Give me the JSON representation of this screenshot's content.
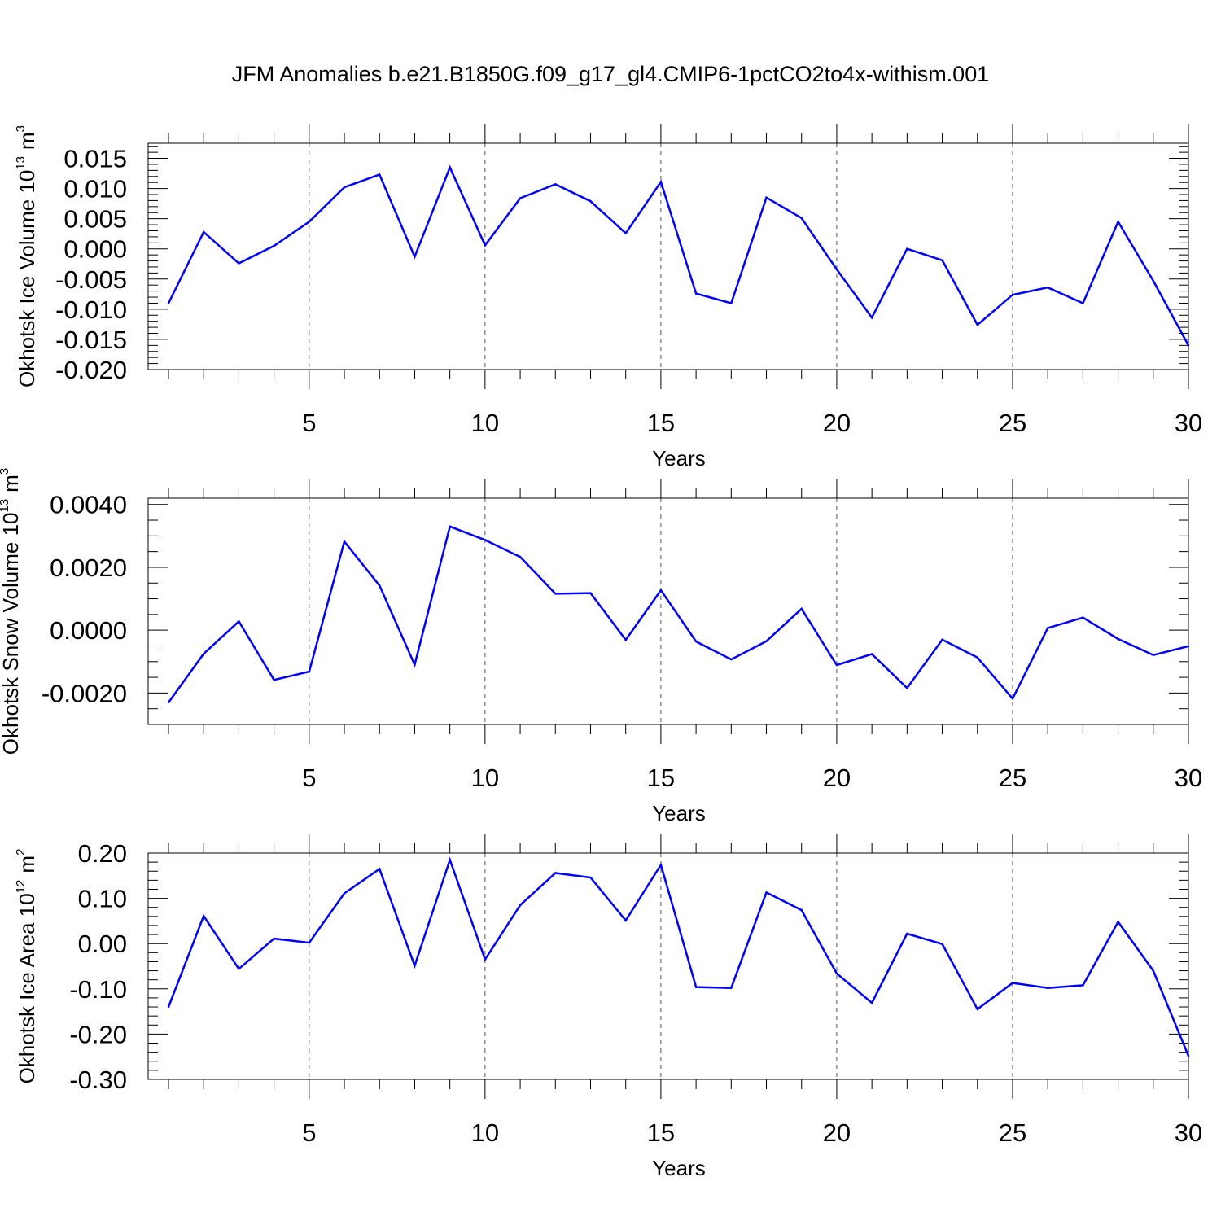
{
  "title": "JFM Anomalies b.e21.B1850G.f09_g17_gl4.CMIP6-1pctCO2to4x-withism.001",
  "colors": {
    "line": "#0000ff",
    "axis": "#000000",
    "grid": "#555555"
  },
  "chart_data": [
    {
      "type": "line",
      "ylabel": {
        "text": "Okhotsk Ice Volume 10",
        "exponent": "13",
        "unit": "m",
        "unit_exponent": "3"
      },
      "xlabel": "Years",
      "xlim": [
        1,
        30
      ],
      "ylim": [
        -0.02,
        0.0175
      ],
      "xticks": [
        5,
        10,
        15,
        20,
        25,
        30
      ],
      "xtick_labels": [
        "5",
        "10",
        "15",
        "20",
        "25",
        "30"
      ],
      "yticks": [
        -0.02,
        -0.015,
        -0.01,
        -0.005,
        0.0,
        0.005,
        0.01,
        0.015
      ],
      "ytick_labels": [
        "-0.020",
        "-0.015",
        "-0.010",
        "-0.005",
        "0.000",
        "0.005",
        "0.010",
        "0.015"
      ],
      "yminor_step": 0.001,
      "x": [
        1,
        2,
        3,
        4,
        5,
        6,
        7,
        8,
        9,
        10,
        11,
        12,
        13,
        14,
        15,
        16,
        17,
        18,
        19,
        20,
        21,
        22,
        23,
        24,
        25,
        26,
        27,
        28,
        29,
        30
      ],
      "values": [
        -0.009,
        0.0028,
        -0.0024,
        0.0005,
        0.0045,
        0.0102,
        0.0123,
        -0.0013,
        0.0135,
        0.0006,
        0.0084,
        0.0107,
        0.0079,
        0.0026,
        0.0111,
        -0.0074,
        -0.009,
        0.0085,
        0.0051,
        -0.0034,
        -0.0114,
        0.0,
        -0.0019,
        -0.0126,
        -0.0076,
        -0.0064,
        -0.009,
        0.0045,
        -0.0053,
        -0.016
      ]
    },
    {
      "type": "line",
      "ylabel": {
        "text": "Okhotsk Snow Volume 10",
        "exponent": "13",
        "unit": "m",
        "unit_exponent": "3"
      },
      "xlabel": "Years",
      "xlim": [
        1,
        30
      ],
      "ylim": [
        -0.003,
        0.0042
      ],
      "xticks": [
        5,
        10,
        15,
        20,
        25,
        30
      ],
      "xtick_labels": [
        "5",
        "10",
        "15",
        "20",
        "25",
        "30"
      ],
      "yticks": [
        -0.002,
        0.0,
        0.002,
        0.004
      ],
      "ytick_labels": [
        "-0.0020",
        "0.0000",
        "0.0020",
        "0.0040"
      ],
      "yminor_step": 0.0005,
      "x": [
        1,
        2,
        3,
        4,
        5,
        6,
        7,
        8,
        9,
        10,
        11,
        12,
        13,
        14,
        15,
        16,
        17,
        18,
        19,
        20,
        21,
        22,
        23,
        24,
        25,
        26,
        27,
        28,
        29,
        30
      ],
      "values": [
        -0.0023,
        -0.00075,
        0.00028,
        -0.00158,
        -0.00132,
        0.00282,
        0.00142,
        -0.0011,
        0.0033,
        0.00287,
        0.00233,
        0.00116,
        0.00118,
        -0.00031,
        0.00127,
        -0.00036,
        -0.00093,
        -0.00035,
        0.00068,
        -0.00111,
        -0.00076,
        -0.00184,
        -0.0003,
        -0.00087,
        -0.00218,
        7e-05,
        0.0004,
        -0.00028,
        -0.00079,
        -0.00051
      ]
    },
    {
      "type": "line",
      "ylabel": {
        "text": "Okhotsk Ice Area 10",
        "exponent": "12",
        "unit": "m",
        "unit_exponent": "2"
      },
      "xlabel": "Years",
      "xlim": [
        1,
        30
      ],
      "ylim": [
        -0.3,
        0.2
      ],
      "xticks": [
        5,
        10,
        15,
        20,
        25,
        30
      ],
      "xtick_labels": [
        "5",
        "10",
        "15",
        "20",
        "25",
        "30"
      ],
      "yticks": [
        -0.3,
        -0.2,
        -0.1,
        0.0,
        0.1,
        0.2
      ],
      "ytick_labels": [
        "-0.30",
        "-0.20",
        "-0.10",
        "0.00",
        "0.10",
        "0.20"
      ],
      "yminor_step": 0.02,
      "x": [
        1,
        2,
        3,
        4,
        5,
        6,
        7,
        8,
        9,
        10,
        11,
        12,
        13,
        14,
        15,
        16,
        17,
        18,
        19,
        20,
        21,
        22,
        23,
        24,
        25,
        26,
        27,
        28,
        29,
        30
      ],
      "values": [
        -0.14,
        0.061,
        -0.056,
        0.011,
        0.002,
        0.111,
        0.165,
        -0.049,
        0.185,
        -0.035,
        0.085,
        0.156,
        0.146,
        0.051,
        0.174,
        -0.096,
        -0.098,
        0.113,
        0.074,
        -0.066,
        -0.131,
        0.022,
        -0.001,
        -0.145,
        -0.087,
        -0.098,
        -0.092,
        0.048,
        -0.06,
        -0.248
      ]
    }
  ]
}
